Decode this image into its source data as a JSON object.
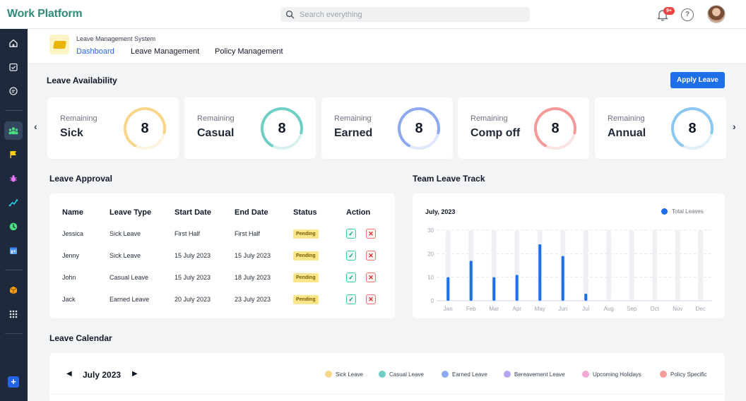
{
  "app": {
    "title": "Work Platform"
  },
  "search": {
    "placeholder": "Search everything"
  },
  "header": {
    "notification_count": "9+",
    "help_label": "?"
  },
  "sidebar": {
    "items": [
      {
        "icon": "home-icon"
      },
      {
        "icon": "calendar-check-icon"
      },
      {
        "icon": "chat-icon"
      },
      {
        "icon": "team-icon"
      },
      {
        "icon": "flag-icon"
      },
      {
        "icon": "bug-icon"
      },
      {
        "icon": "trend-icon"
      },
      {
        "icon": "clock-icon"
      },
      {
        "icon": "calendar-icon"
      },
      {
        "icon": "box-icon"
      },
      {
        "icon": "apps-grid-icon"
      }
    ],
    "active_index": 3,
    "add_label": "+"
  },
  "module": {
    "name": "Leave Management System",
    "tabs": [
      {
        "label": "Dashboard",
        "active": true
      },
      {
        "label": "Leave Management",
        "active": false
      },
      {
        "label": "Policy Management",
        "active": false
      }
    ]
  },
  "availability": {
    "title": "Leave Availability",
    "apply_label": "Apply Leave",
    "prev_label": "‹",
    "next_label": "›",
    "cards": [
      {
        "label": "Remaining",
        "type": "Sick",
        "count": "8",
        "color": "#f9d58a",
        "fraction": 0.7
      },
      {
        "label": "Remaining",
        "type": "Casual",
        "count": "8",
        "color": "#6fcfc4",
        "fraction": 0.7
      },
      {
        "label": "Remaining",
        "type": "Earned",
        "count": "8",
        "color": "#8da9f0",
        "fraction": 0.7
      },
      {
        "label": "Remaining",
        "type": "Comp off",
        "count": "8",
        "color": "#f49a9a",
        "fraction": 0.7
      },
      {
        "label": "Remaining",
        "type": "Annual",
        "count": "8",
        "color": "#8cc8f2",
        "fraction": 0.7
      }
    ]
  },
  "approval": {
    "title": "Leave Approval",
    "headers": [
      "Name",
      "Leave Type",
      "Start Date",
      "End Date",
      "Status",
      "Action"
    ],
    "rows": [
      {
        "name": "Jessica",
        "type": "Sick Leave",
        "start": "First Half",
        "end": "First Half",
        "status": "Pending"
      },
      {
        "name": "Jenny",
        "type": "Sick Leave",
        "start": "15 July 2023",
        "end": "15 July 2023",
        "status": "Pending"
      },
      {
        "name": "John",
        "type": "Casual Leave",
        "start": "15 July 2023",
        "end": "18 July 2023",
        "status": "Pending"
      },
      {
        "name": "Jack",
        "type": "Earned Leave",
        "start": "20 July 2023",
        "end": "23 July 2023",
        "status": "Pending"
      }
    ],
    "approve_symbol": "✓",
    "reject_symbol": "✕"
  },
  "team_track": {
    "title": "Team Leave Track",
    "month_label": "July, 2023"
  },
  "chart_data": {
    "type": "bar",
    "categories": [
      "Jan",
      "Feb",
      "Mar",
      "Apr",
      "May",
      "Jun",
      "Jul",
      "Aug",
      "Sep",
      "Oct",
      "Nov",
      "Dec"
    ],
    "series": [
      {
        "name": "Total Leaves",
        "values": [
          10,
          17,
          10,
          11,
          24,
          19,
          3,
          0,
          0,
          0,
          0,
          0
        ],
        "color": "#1d6fe8"
      }
    ],
    "y_ticks": [
      "0",
      "10",
      "20",
      "30"
    ],
    "ylim": [
      0,
      30
    ],
    "grid": true,
    "legend": "top-right"
  },
  "calendar": {
    "title": "Leave Calendar",
    "month": "July 2023",
    "prev_label": "◀",
    "next_label": "▶",
    "legend": [
      {
        "label": "Sick Leave",
        "color": "#f9d58a"
      },
      {
        "label": "Casual Leave",
        "color": "#6fcfc4"
      },
      {
        "label": "Earned Leave",
        "color": "#8da9f0"
      },
      {
        "label": "Bereavement Leave",
        "color": "#b9a4f2"
      },
      {
        "label": "Upcoming Holidays",
        "color": "#f5a8d6"
      },
      {
        "label": "Policy Specific",
        "color": "#f49a9a"
      }
    ]
  }
}
